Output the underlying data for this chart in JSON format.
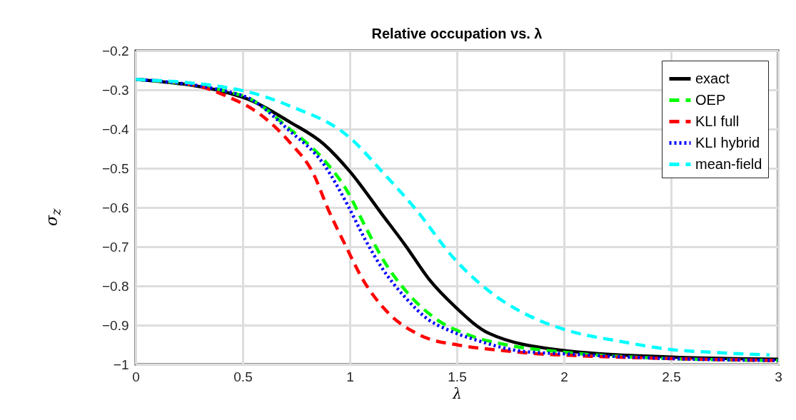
{
  "chart_data": {
    "type": "line",
    "title": "Relative occupation vs. λ",
    "xlabel": "λ",
    "ylabel": "σ$_{z}$",
    "xlim": [
      0,
      3
    ],
    "xticks": [
      0,
      0.5,
      1,
      1.5,
      2,
      2.5,
      3
    ],
    "ylim": [
      -1,
      -0.2
    ],
    "yticks": [
      -1,
      -0.9,
      -0.8,
      -0.7,
      -0.6,
      -0.5,
      -0.4,
      -0.3,
      -0.2
    ],
    "grid": true,
    "legend": "top right",
    "marker": "none",
    "series": [
      {
        "name": "exact",
        "color": "#000000",
        "line_style": "solid",
        "x": [
          0,
          0.5,
          0.72,
          0.88,
          1.0,
          1.15,
          1.26,
          1.37,
          1.49,
          1.65,
          1.99,
          2.48,
          3
        ],
        "values": [
          -0.273,
          -0.319,
          -0.382,
          -0.439,
          -0.508,
          -0.617,
          -0.697,
          -0.783,
          -0.852,
          -0.921,
          -0.964,
          -0.981,
          -0.987
        ]
      },
      {
        "name": "OEP",
        "color": "#00ff00",
        "line_style": "dashed",
        "x": [
          0,
          0.5,
          0.72,
          0.88,
          0.99,
          1.07,
          1.16,
          1.27,
          1.41,
          1.56,
          1.75,
          2.0,
          2.48,
          3
        ],
        "values": [
          -0.273,
          -0.315,
          -0.4,
          -0.479,
          -0.56,
          -0.646,
          -0.737,
          -0.818,
          -0.887,
          -0.926,
          -0.952,
          -0.969,
          -0.985,
          -0.99
        ]
      },
      {
        "name": "KLI full",
        "color": "#ff0000",
        "line_style": "dashed",
        "x": [
          0,
          0.29,
          0.42,
          0.58,
          0.72,
          0.83,
          0.9,
          0.98,
          1.06,
          1.18,
          1.33,
          1.52,
          1.7,
          1.88,
          2.07,
          2.48,
          3
        ],
        "values": [
          -0.273,
          -0.29,
          -0.315,
          -0.362,
          -0.434,
          -0.514,
          -0.606,
          -0.697,
          -0.783,
          -0.869,
          -0.926,
          -0.952,
          -0.964,
          -0.973,
          -0.978,
          -0.985,
          -0.99
        ]
      },
      {
        "name": "KLI hybrid",
        "color": "#0000ff",
        "line_style": "dotted",
        "x": [
          0,
          0.5,
          0.72,
          0.88,
          0.99,
          1.07,
          1.15,
          1.26,
          1.37,
          1.45,
          1.59,
          1.81,
          2.0,
          2.48,
          3
        ],
        "values": [
          -0.273,
          -0.315,
          -0.405,
          -0.491,
          -0.594,
          -0.68,
          -0.754,
          -0.83,
          -0.887,
          -0.91,
          -0.938,
          -0.967,
          -0.973,
          -0.985,
          -0.99
        ]
      },
      {
        "name": "mean-field",
        "color": "#00ffff",
        "line_style": "dashed",
        "x": [
          0,
          0.5,
          0.72,
          1.0,
          1.15,
          1.31,
          1.49,
          1.65,
          1.86,
          1.99,
          2.29,
          2.48,
          2.72,
          2.96
        ],
        "values": [
          -0.273,
          -0.302,
          -0.341,
          -0.422,
          -0.508,
          -0.606,
          -0.732,
          -0.813,
          -0.882,
          -0.909,
          -0.944,
          -0.961,
          -0.97,
          -0.976
        ]
      }
    ]
  }
}
